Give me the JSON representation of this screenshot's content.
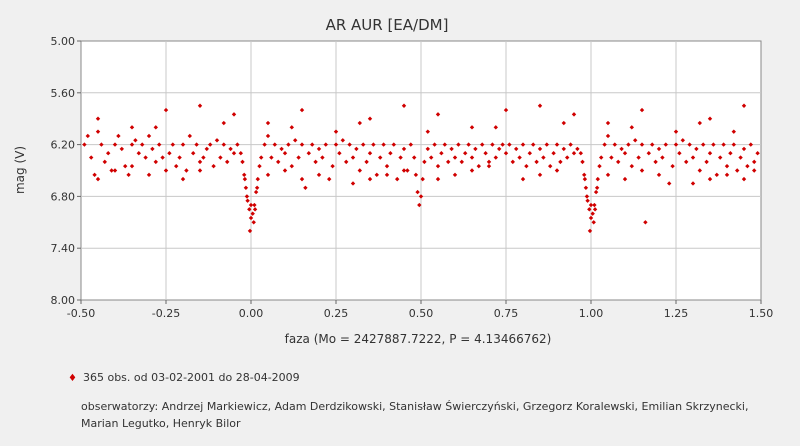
{
  "chart_data": {
    "type": "scatter",
    "title": "AR AUR [EA/DM]",
    "xlabel": "faza (Mo = 2427887.7222, P = 4.13466762)",
    "ylabel": "mag (V)",
    "xlim": [
      -0.5,
      1.5
    ],
    "ylim": [
      5.0,
      8.0
    ],
    "y_inverted": true,
    "grid": true,
    "x_ticks": [
      "-0.50",
      "-0.25",
      "0.00",
      "0.25",
      "0.50",
      "0.75",
      "1.00",
      "1.25",
      "1.50"
    ],
    "y_ticks": [
      "5.00",
      "5.60",
      "6.20",
      "6.80",
      "7.40",
      "8.00"
    ],
    "series_color": "#d00000",
    "points": [
      [
        -0.49,
        6.2
      ],
      [
        -0.48,
        6.1
      ],
      [
        -0.47,
        6.35
      ],
      [
        -0.46,
        6.55
      ],
      [
        -0.45,
        6.05
      ],
      [
        -0.44,
        6.2
      ],
      [
        -0.43,
        6.4
      ],
      [
        -0.42,
        6.3
      ],
      [
        -0.41,
        6.5
      ],
      [
        -0.4,
        6.2
      ],
      [
        -0.39,
        6.1
      ],
      [
        -0.38,
        6.25
      ],
      [
        -0.37,
        6.45
      ],
      [
        -0.36,
        6.55
      ],
      [
        -0.35,
        6.2
      ],
      [
        -0.34,
        6.15
      ],
      [
        -0.33,
        6.3
      ],
      [
        -0.32,
        6.2
      ],
      [
        -0.31,
        6.35
      ],
      [
        -0.3,
        6.1
      ],
      [
        -0.29,
        6.25
      ],
      [
        -0.28,
        6.4
      ],
      [
        -0.27,
        6.2
      ],
      [
        -0.26,
        6.35
      ],
      [
        -0.25,
        6.5
      ],
      [
        -0.24,
        6.3
      ],
      [
        -0.23,
        6.2
      ],
      [
        -0.22,
        6.45
      ],
      [
        -0.21,
        6.35
      ],
      [
        -0.2,
        6.2
      ],
      [
        -0.19,
        6.5
      ],
      [
        -0.18,
        6.1
      ],
      [
        -0.17,
        6.3
      ],
      [
        -0.16,
        6.2
      ],
      [
        -0.15,
        6.4
      ],
      [
        -0.14,
        6.35
      ],
      [
        -0.13,
        6.25
      ],
      [
        -0.12,
        6.2
      ],
      [
        -0.11,
        6.45
      ],
      [
        -0.1,
        6.15
      ],
      [
        -0.09,
        6.35
      ],
      [
        -0.08,
        6.2
      ],
      [
        -0.07,
        6.4
      ],
      [
        -0.06,
        6.25
      ],
      [
        -0.05,
        6.3
      ],
      [
        -0.04,
        6.2
      ],
      [
        -0.03,
        6.3
      ],
      [
        -0.025,
        6.4
      ],
      [
        -0.02,
        6.55
      ],
      [
        -0.015,
        6.7
      ],
      [
        -0.01,
        6.85
      ],
      [
        -0.005,
        6.95
      ],
      [
        0.0,
        7.05
      ],
      [
        0.005,
        7.0
      ],
      [
        0.01,
        6.9
      ],
      [
        0.015,
        6.75
      ],
      [
        0.02,
        6.6
      ],
      [
        0.025,
        6.45
      ],
      [
        0.03,
        6.35
      ],
      [
        -0.012,
        6.8
      ],
      [
        0.008,
        7.1
      ],
      [
        -0.003,
        7.2
      ],
      [
        0.012,
        6.95
      ],
      [
        -0.018,
        6.6
      ],
      [
        0.018,
        6.7
      ],
      [
        0.0,
        6.9
      ],
      [
        0.04,
        6.2
      ],
      [
        0.05,
        6.1
      ],
      [
        0.06,
        6.35
      ],
      [
        0.07,
        6.2
      ],
      [
        0.08,
        6.4
      ],
      [
        0.09,
        6.25
      ],
      [
        0.1,
        6.3
      ],
      [
        0.11,
        6.2
      ],
      [
        0.12,
        6.45
      ],
      [
        0.13,
        6.15
      ],
      [
        0.14,
        6.35
      ],
      [
        0.15,
        6.2
      ],
      [
        0.16,
        6.7
      ],
      [
        0.17,
        6.3
      ],
      [
        0.18,
        6.2
      ],
      [
        0.19,
        6.4
      ],
      [
        0.2,
        6.25
      ],
      [
        0.21,
        6.35
      ],
      [
        0.22,
        6.2
      ],
      [
        0.23,
        6.6
      ],
      [
        0.24,
        6.45
      ],
      [
        0.25,
        6.2
      ],
      [
        0.26,
        6.3
      ],
      [
        0.27,
        6.15
      ],
      [
        0.28,
        6.4
      ],
      [
        0.29,
        6.2
      ],
      [
        0.3,
        6.35
      ],
      [
        0.31,
        6.25
      ],
      [
        0.32,
        6.5
      ],
      [
        0.33,
        6.2
      ],
      [
        0.34,
        6.4
      ],
      [
        0.35,
        6.3
      ],
      [
        0.36,
        6.2
      ],
      [
        0.37,
        6.55
      ],
      [
        0.38,
        6.35
      ],
      [
        0.39,
        6.2
      ],
      [
        0.4,
        6.45
      ],
      [
        0.41,
        6.3
      ],
      [
        0.42,
        6.2
      ],
      [
        0.43,
        6.6
      ],
      [
        0.44,
        6.35
      ],
      [
        0.45,
        6.25
      ],
      [
        0.46,
        6.5
      ],
      [
        0.47,
        6.2
      ],
      [
        0.48,
        6.35
      ],
      [
        0.485,
        6.55
      ],
      [
        0.49,
        6.75
      ],
      [
        0.495,
        6.9
      ],
      [
        0.5,
        6.8
      ],
      [
        0.505,
        6.6
      ],
      [
        0.51,
        6.4
      ],
      [
        0.52,
        6.25
      ],
      [
        0.53,
        6.35
      ],
      [
        0.54,
        6.2
      ],
      [
        0.55,
        6.45
      ],
      [
        0.56,
        6.3
      ],
      [
        0.57,
        6.2
      ],
      [
        0.58,
        6.4
      ],
      [
        0.59,
        6.25
      ],
      [
        0.6,
        6.35
      ],
      [
        0.61,
        6.2
      ],
      [
        0.62,
        6.4
      ],
      [
        0.63,
        6.3
      ],
      [
        0.64,
        6.2
      ],
      [
        0.65,
        6.35
      ],
      [
        0.66,
        6.25
      ],
      [
        0.67,
        6.45
      ],
      [
        0.68,
        6.2
      ],
      [
        0.69,
        6.3
      ],
      [
        0.7,
        6.4
      ],
      [
        0.71,
        6.2
      ],
      [
        0.72,
        6.35
      ],
      [
        0.73,
        6.25
      ],
      [
        0.74,
        6.2
      ],
      [
        0.75,
        6.3
      ],
      [
        0.76,
        6.2
      ],
      [
        0.77,
        6.4
      ],
      [
        0.78,
        6.25
      ],
      [
        0.79,
        6.35
      ],
      [
        0.8,
        6.2
      ],
      [
        0.81,
        6.45
      ],
      [
        0.82,
        6.3
      ],
      [
        0.83,
        6.2
      ],
      [
        0.84,
        6.4
      ],
      [
        0.85,
        6.25
      ],
      [
        0.86,
        6.35
      ],
      [
        0.87,
        6.2
      ],
      [
        0.88,
        6.45
      ],
      [
        0.89,
        6.3
      ],
      [
        0.9,
        6.2
      ],
      [
        0.91,
        6.4
      ],
      [
        0.92,
        6.25
      ],
      [
        0.93,
        6.35
      ],
      [
        0.94,
        6.2
      ],
      [
        0.95,
        6.3
      ],
      [
        0.96,
        6.25
      ],
      [
        0.97,
        6.3
      ],
      [
        0.975,
        6.4
      ],
      [
        0.98,
        6.55
      ],
      [
        0.985,
        6.7
      ],
      [
        0.99,
        6.85
      ],
      [
        0.995,
        6.95
      ],
      [
        1.0,
        7.05
      ],
      [
        1.005,
        7.0
      ],
      [
        1.01,
        6.9
      ],
      [
        1.015,
        6.75
      ],
      [
        1.02,
        6.6
      ],
      [
        1.025,
        6.45
      ],
      [
        1.03,
        6.35
      ],
      [
        0.988,
        6.8
      ],
      [
        1.008,
        7.1
      ],
      [
        0.997,
        7.2
      ],
      [
        1.012,
        6.95
      ],
      [
        0.982,
        6.6
      ],
      [
        1.018,
        6.7
      ],
      [
        1.0,
        6.9
      ],
      [
        1.04,
        6.2
      ],
      [
        1.05,
        6.1
      ],
      [
        1.06,
        6.35
      ],
      [
        1.07,
        6.2
      ],
      [
        1.08,
        6.4
      ],
      [
        1.09,
        6.25
      ],
      [
        1.1,
        6.3
      ],
      [
        1.11,
        6.2
      ],
      [
        1.12,
        6.45
      ],
      [
        1.13,
        6.15
      ],
      [
        1.14,
        6.35
      ],
      [
        1.15,
        6.2
      ],
      [
        1.16,
        7.1
      ],
      [
        1.17,
        6.3
      ],
      [
        1.18,
        6.2
      ],
      [
        1.19,
        6.4
      ],
      [
        1.2,
        6.25
      ],
      [
        1.21,
        6.35
      ],
      [
        1.22,
        6.2
      ],
      [
        1.23,
        6.65
      ],
      [
        1.24,
        6.45
      ],
      [
        1.25,
        6.2
      ],
      [
        1.26,
        6.3
      ],
      [
        1.27,
        6.15
      ],
      [
        1.28,
        6.4
      ],
      [
        1.29,
        6.2
      ],
      [
        1.3,
        6.35
      ],
      [
        1.31,
        6.25
      ],
      [
        1.32,
        6.5
      ],
      [
        1.33,
        6.2
      ],
      [
        1.34,
        6.4
      ],
      [
        1.35,
        6.3
      ],
      [
        1.36,
        6.2
      ],
      [
        1.37,
        6.55
      ],
      [
        1.38,
        6.35
      ],
      [
        1.39,
        6.2
      ],
      [
        1.4,
        6.45
      ],
      [
        1.41,
        6.3
      ],
      [
        1.42,
        6.2
      ],
      [
        1.43,
        6.5
      ],
      [
        1.44,
        6.35
      ],
      [
        1.45,
        6.25
      ],
      [
        1.46,
        6.45
      ],
      [
        1.47,
        6.2
      ],
      [
        1.48,
        6.4
      ],
      [
        1.49,
        6.3
      ],
      [
        -0.45,
        6.6
      ],
      [
        -0.4,
        6.5
      ],
      [
        -0.35,
        6.45
      ],
      [
        -0.3,
        6.55
      ],
      [
        -0.2,
        6.6
      ],
      [
        -0.15,
        6.5
      ],
      [
        0.05,
        6.55
      ],
      [
        0.1,
        6.5
      ],
      [
        0.15,
        6.6
      ],
      [
        0.2,
        6.55
      ],
      [
        0.3,
        6.65
      ],
      [
        0.35,
        6.6
      ],
      [
        0.4,
        6.55
      ],
      [
        0.45,
        6.5
      ],
      [
        0.55,
        6.6
      ],
      [
        0.6,
        6.55
      ],
      [
        0.65,
        6.5
      ],
      [
        0.7,
        6.45
      ],
      [
        0.8,
        6.6
      ],
      [
        0.85,
        6.55
      ],
      [
        0.9,
        6.5
      ],
      [
        1.05,
        6.55
      ],
      [
        1.1,
        6.6
      ],
      [
        1.15,
        6.5
      ],
      [
        1.2,
        6.55
      ],
      [
        1.3,
        6.65
      ],
      [
        1.35,
        6.6
      ],
      [
        1.4,
        6.55
      ],
      [
        1.45,
        6.6
      ],
      [
        1.48,
        6.5
      ],
      [
        -0.45,
        5.9
      ],
      [
        -0.35,
        6.0
      ],
      [
        -0.25,
        5.8
      ],
      [
        -0.15,
        5.75
      ],
      [
        -0.05,
        5.85
      ],
      [
        0.05,
        5.95
      ],
      [
        0.15,
        5.8
      ],
      [
        0.25,
        6.05
      ],
      [
        0.35,
        5.9
      ],
      [
        0.45,
        5.75
      ],
      [
        0.55,
        5.85
      ],
      [
        0.65,
        6.0
      ],
      [
        0.75,
        5.8
      ],
      [
        0.85,
        5.75
      ],
      [
        0.95,
        5.85
      ],
      [
        1.05,
        5.95
      ],
      [
        1.15,
        5.8
      ],
      [
        1.25,
        6.05
      ],
      [
        1.35,
        5.9
      ],
      [
        1.45,
        5.75
      ],
      [
        -0.28,
        6.0
      ],
      [
        -0.08,
        5.95
      ],
      [
        0.12,
        6.0
      ],
      [
        0.32,
        5.95
      ],
      [
        0.52,
        6.05
      ],
      [
        0.72,
        6.0
      ],
      [
        0.92,
        5.95
      ],
      [
        1.12,
        6.0
      ],
      [
        1.32,
        5.95
      ],
      [
        1.42,
        6.05
      ]
    ]
  },
  "legend": {
    "marker": "♦",
    "text": "365 obs. od 03-02-2001 do 28-04-2009"
  },
  "observers_text": "obserwatorzy: Andrzej Markiewicz, Adam Derdzikowski, Stanisław Świerczyński, Grzegorz Koralewski, Emilian Skrzynecki, Marian Legutko, Henryk Bilor"
}
